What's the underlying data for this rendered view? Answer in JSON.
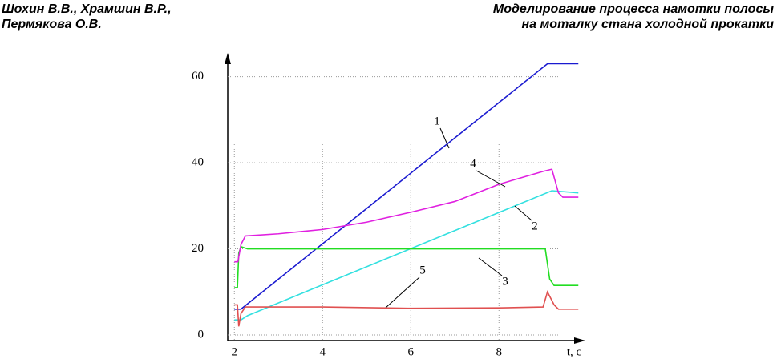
{
  "header": {
    "left": [
      "Шохин В.В., Храмшин В.Р.,",
      "Пермякова О.В."
    ],
    "right": [
      "Моделирование процесса намотки полосы",
      "на моталку стана холодной прокатки"
    ]
  },
  "chart_data": {
    "type": "line",
    "x_label": "t, c",
    "xlim": [
      1.85,
      9.85
    ],
    "ylim": [
      -1.3,
      65.7
    ],
    "xticks": [
      2,
      4,
      6,
      8
    ],
    "yticks": [
      0,
      20,
      40,
      60
    ],
    "grid": true,
    "series": [
      {
        "name": "1",
        "color": "#1a1ad0",
        "x": [
          2,
          2.15,
          9.1,
          9.8
        ],
        "values": [
          6,
          6,
          63,
          63
        ]
      },
      {
        "name": "2",
        "color": "#33e0e0",
        "x": [
          2,
          2.15,
          2.3,
          9.2,
          9.8
        ],
        "values": [
          3.5,
          3.5,
          4.5,
          33.5,
          33
        ]
      },
      {
        "name": "3",
        "color": "#22dd22",
        "x": [
          2,
          2.07,
          2.1,
          2.15,
          2.3,
          9.05,
          9.15,
          9.25,
          9.8
        ],
        "values": [
          11,
          11,
          19,
          20.5,
          20,
          20,
          13,
          11.5,
          11.5
        ]
      },
      {
        "name": "4",
        "color": "#e020e0",
        "x": [
          2,
          2.08,
          2.15,
          2.25,
          3,
          4,
          5,
          6,
          7,
          8,
          9,
          9.2,
          9.35,
          9.45,
          9.8
        ],
        "values": [
          17,
          17,
          21,
          23,
          23.5,
          24.5,
          26.2,
          28.5,
          31,
          35,
          38,
          38.5,
          33,
          32,
          32
        ]
      },
      {
        "name": "5",
        "color": "#e05050",
        "x": [
          2,
          2.07,
          2.1,
          2.15,
          2.25,
          4,
          6,
          8,
          9,
          9.1,
          9.25,
          9.35,
          9.8
        ],
        "values": [
          7,
          7,
          2,
          5,
          6.5,
          6.5,
          6.2,
          6.3,
          6.5,
          10,
          7,
          6,
          6
        ]
      }
    ]
  }
}
